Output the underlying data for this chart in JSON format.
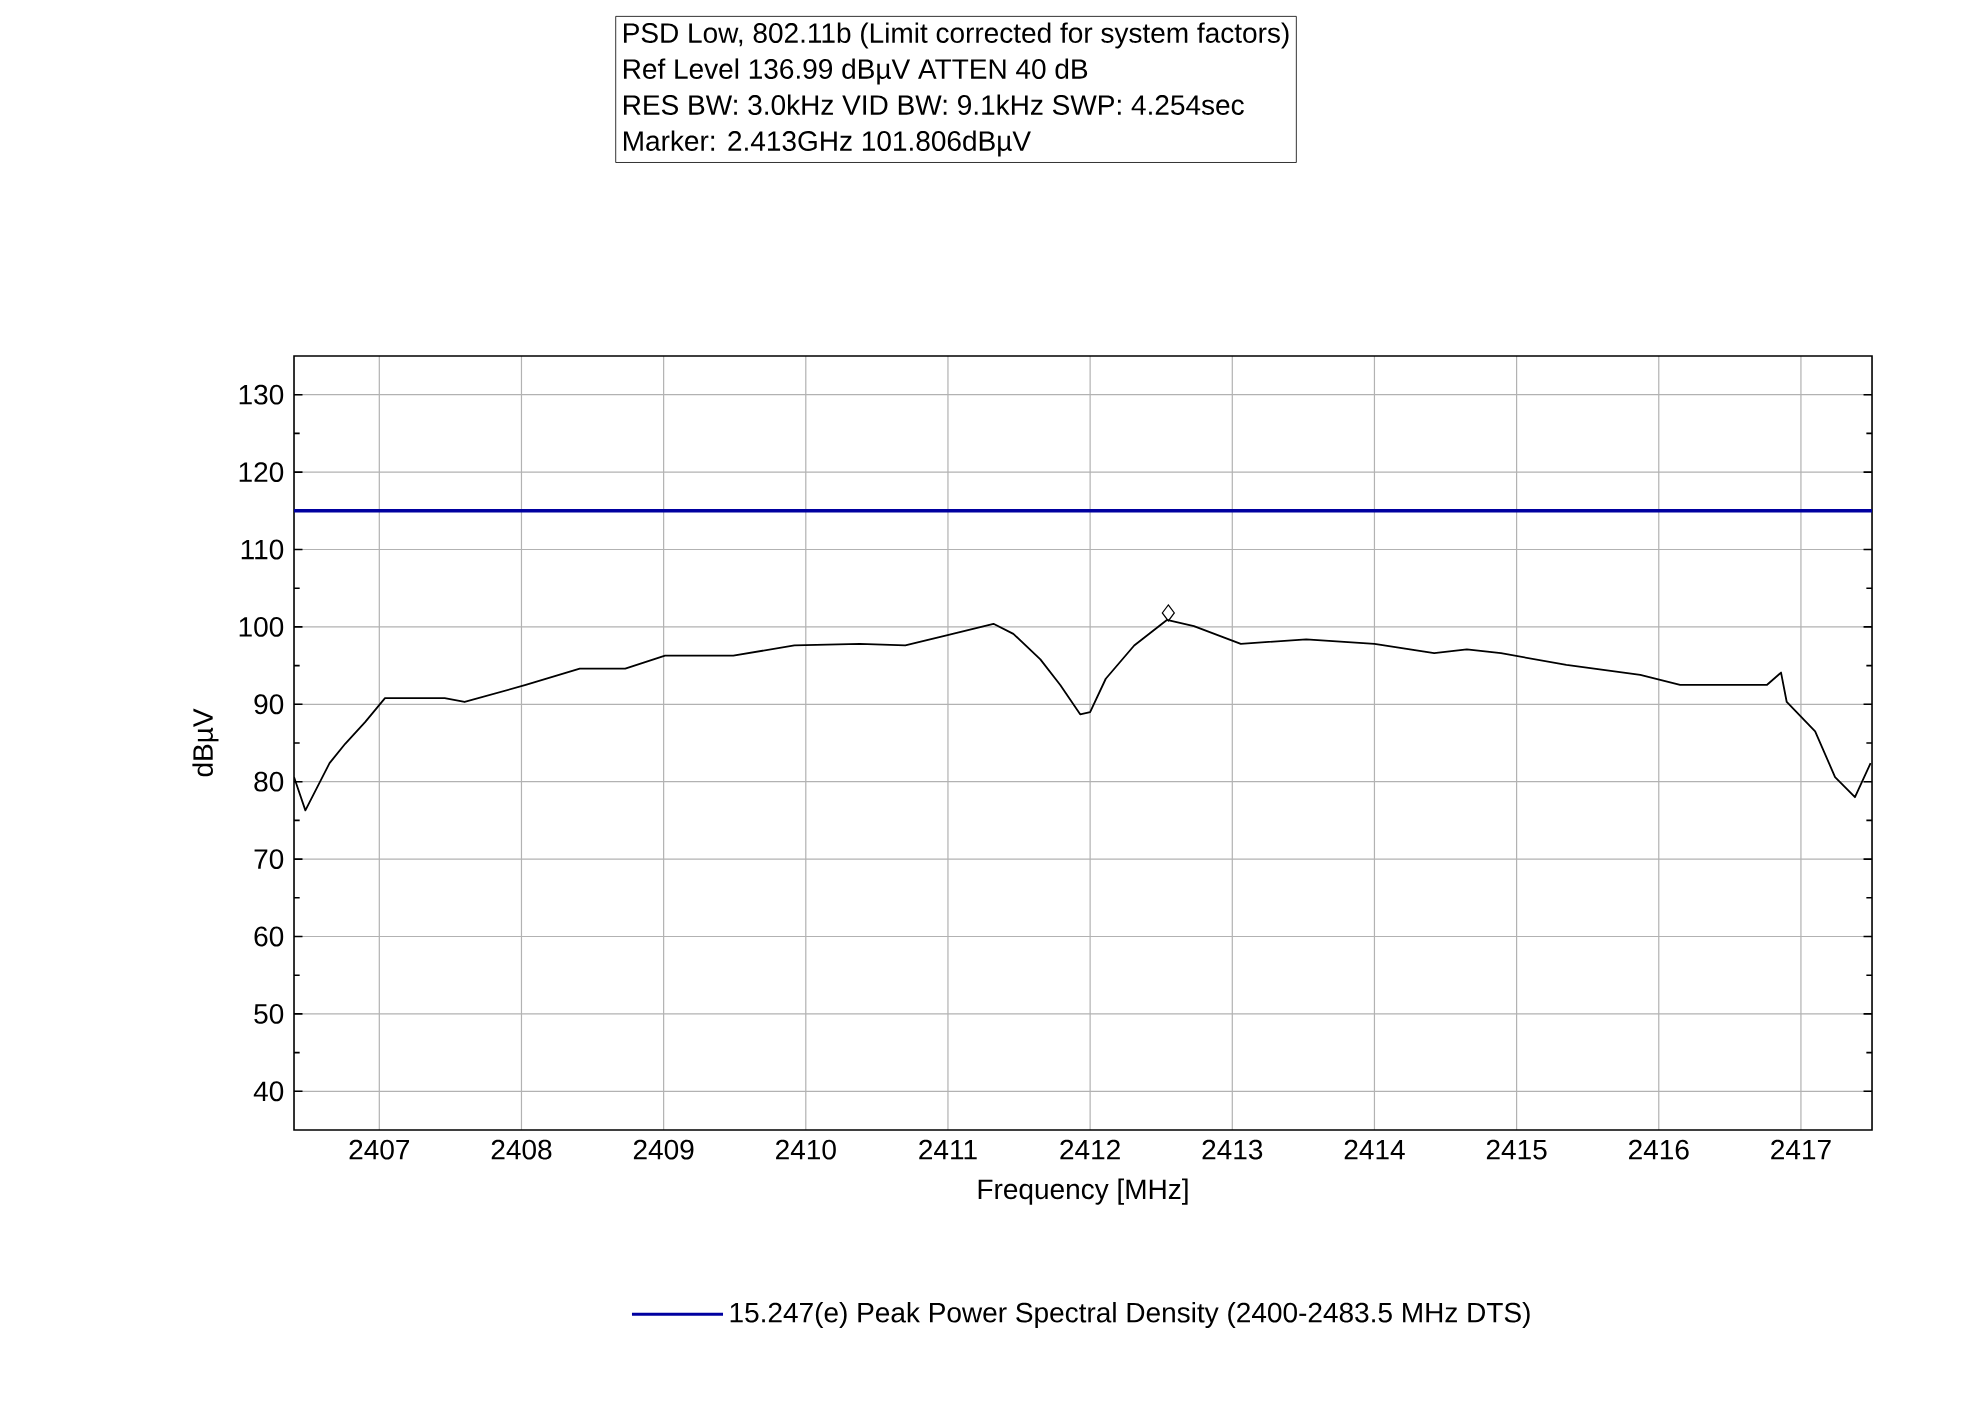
{
  "chart_data": {
    "type": "line",
    "xlabel": "Frequency [MHz]",
    "ylabel": "dBµV",
    "annotations": [
      "PSD Low, 802.11b (Limit corrected for system factors)",
      "Ref Level 136.99 dBµV    ATTEN 40 dB",
      "RES BW: 3.0kHz  VID BW: 9.1kHz  SWP: 4.254sec",
      "Marker: 2.413GHz  101.806dBµV"
    ],
    "xlim": [
      2406.4,
      2417.5
    ],
    "ylim": [
      35,
      135
    ],
    "xticks": [
      2407,
      2408,
      2409,
      2410,
      2411,
      2412,
      2413,
      2414,
      2415,
      2416,
      2417
    ],
    "yticks": [
      40,
      50,
      60,
      70,
      80,
      90,
      100,
      110,
      120,
      130
    ],
    "grid": true,
    "legend": "bottom",
    "marker": "none",
    "line_style": "solid",
    "series": [
      {
        "color": "#000000",
        "x": [
          2406.4,
          2406.48,
          2406.65,
          2406.76,
          2406.9,
          2407.04,
          2407.46,
          2407.6,
          2408.03,
          2408.41,
          2408.73,
          2409.01,
          2409.49,
          2409.92,
          2410.38,
          2410.7,
          2410.99,
          2411.32,
          2411.46,
          2411.65,
          2411.79,
          2411.93,
          2412.0,
          2412.11,
          2412.31,
          2412.54,
          2412.73,
          2413.06,
          2413.52,
          2414.0,
          2414.42,
          2414.65,
          2414.89,
          2415.35,
          2415.87,
          2416.15,
          2416.76,
          2416.86,
          2416.9,
          2417.1,
          2417.24,
          2417.38,
          2417.49
        ],
        "values": [
          80.6,
          76.3,
          82.4,
          84.9,
          87.7,
          90.8,
          90.8,
          90.3,
          92.5,
          94.6,
          94.6,
          96.3,
          96.3,
          97.6,
          97.8,
          97.6,
          98.9,
          100.4,
          99.1,
          95.8,
          92.5,
          88.7,
          89.0,
          93.3,
          97.6,
          100.9,
          100.1,
          97.8,
          98.4,
          97.8,
          96.6,
          97.1,
          96.6,
          95.1,
          93.8,
          92.5,
          92.5,
          94.1,
          90.3,
          86.5,
          80.6,
          78.0,
          82.4
        ]
      },
      {
        "type": "scatter",
        "marker": "diamond",
        "color": "#000000",
        "x": [
          2412.55
        ],
        "values": [
          101.8
        ]
      },
      {
        "name": "15.247(e) Peak Power Spectral Density (2400-2483.5 MHz DTS)",
        "color": "#0000a0",
        "x": [
          2406.4,
          2417.5
        ],
        "values": [
          115,
          115
        ]
      }
    ]
  }
}
